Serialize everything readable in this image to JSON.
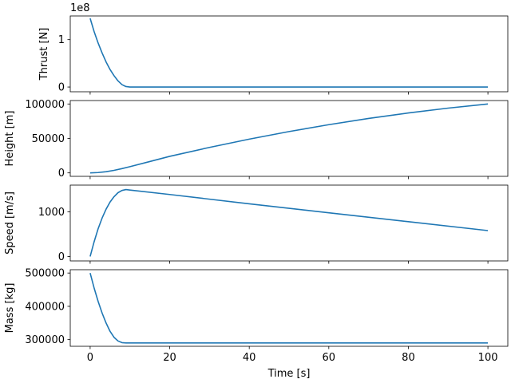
{
  "chart_data": [
    {
      "type": "line",
      "ylabel": "Thrust [N]",
      "offset_label": "1e8",
      "color": "#1f77b4",
      "xlim": [
        -5,
        105
      ],
      "ylim": [
        -0.1,
        1.5
      ],
      "yticks": [
        {
          "value": 0,
          "label": "0"
        },
        {
          "value": 1,
          "label": "1"
        }
      ],
      "series": [
        {
          "x": [
            0,
            1,
            2,
            3,
            4,
            5,
            6,
            7,
            8,
            9,
            10,
            20,
            30,
            40,
            50,
            60,
            70,
            80,
            90,
            100
          ],
          "values": [
            1.45,
            1.17,
            0.93,
            0.72,
            0.53,
            0.37,
            0.24,
            0.13,
            0.05,
            0.01,
            0,
            0,
            0,
            0,
            0,
            0,
            0,
            0,
            0,
            0
          ]
        }
      ]
    },
    {
      "type": "line",
      "ylabel": "Height [m]",
      "color": "#1f77b4",
      "xlim": [
        -5,
        105
      ],
      "ylim": [
        -5000,
        105000
      ],
      "yticks": [
        {
          "value": 0,
          "label": "0"
        },
        {
          "value": 50000,
          "label": "50000"
        },
        {
          "value": 100000,
          "label": "100000"
        }
      ],
      "series": [
        {
          "x": [
            0,
            2,
            4,
            6,
            8,
            10,
            15,
            20,
            30,
            40,
            50,
            60,
            70,
            80,
            90,
            100
          ],
          "values": [
            0,
            500,
            1700,
            3700,
            6200,
            9000,
            16500,
            24000,
            37000,
            49000,
            60000,
            70000,
            79000,
            87000,
            94000,
            100000
          ]
        }
      ]
    },
    {
      "type": "line",
      "ylabel": "Speed [m/s]",
      "color": "#1f77b4",
      "xlim": [
        -5,
        105
      ],
      "ylim": [
        -100,
        1600
      ],
      "yticks": [
        {
          "value": 0,
          "label": "0"
        },
        {
          "value": 1000,
          "label": "1000"
        }
      ],
      "series": [
        {
          "x": [
            0,
            1,
            2,
            3,
            4,
            5,
            6,
            7,
            8,
            9,
            10,
            20,
            40,
            60,
            80,
            100
          ],
          "values": [
            0,
            330,
            620,
            860,
            1060,
            1220,
            1340,
            1430,
            1480,
            1500,
            1490,
            1390,
            1180,
            980,
            780,
            580
          ]
        }
      ]
    },
    {
      "type": "line",
      "ylabel": "Mass [kg]",
      "xlabel": "Time [s]",
      "color": "#1f77b4",
      "xlim": [
        -5,
        105
      ],
      "ylim": [
        280000,
        510000
      ],
      "xticks": [
        {
          "value": 0,
          "label": "0"
        },
        {
          "value": 20,
          "label": "20"
        },
        {
          "value": 40,
          "label": "40"
        },
        {
          "value": 60,
          "label": "60"
        },
        {
          "value": 80,
          "label": "80"
        },
        {
          "value": 100,
          "label": "100"
        }
      ],
      "yticks": [
        {
          "value": 300000,
          "label": "300000"
        },
        {
          "value": 400000,
          "label": "400000"
        },
        {
          "value": 500000,
          "label": "500000"
        }
      ],
      "series": [
        {
          "x": [
            0,
            1,
            2,
            3,
            4,
            5,
            6,
            7,
            8,
            9,
            10,
            20,
            40,
            60,
            80,
            100
          ],
          "values": [
            500000,
            455000,
            415000,
            380000,
            350000,
            325000,
            307000,
            296000,
            291000,
            290000,
            290000,
            290000,
            290000,
            290000,
            290000,
            290000
          ]
        }
      ]
    }
  ]
}
